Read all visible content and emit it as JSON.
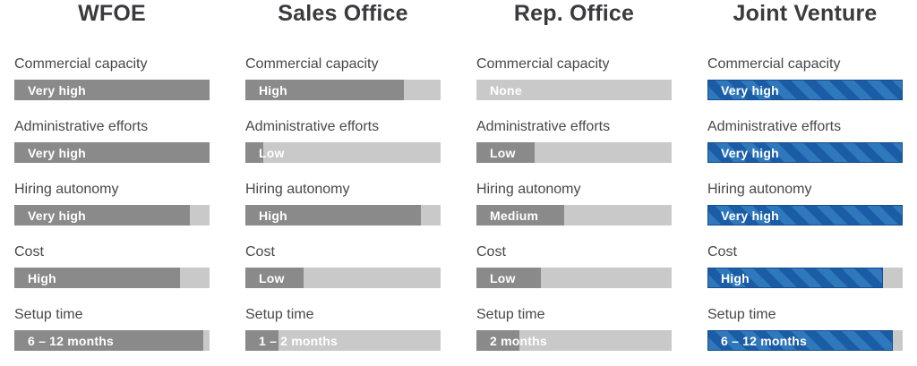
{
  "chart_data": {
    "type": "bar",
    "orientation": "horizontal",
    "scale": {
      "min": 0,
      "max": 100,
      "unit": "percent-of-track"
    },
    "colors": {
      "bar_gray": "#8a8a8a",
      "bar_track": "#c9c9c9",
      "jv_stripe_light": "#2e78bb",
      "jv_stripe_dark": "#1b5ca6",
      "jv_border": "#174e8c",
      "title_text": "#3a3a3f",
      "label_text": "#48484c",
      "bar_value_text": "#ffffff"
    },
    "columns": [
      {
        "title": "WFOE",
        "bar_style": "solid-gray",
        "metrics": [
          {
            "label": "Commercial capacity",
            "value": "Very high",
            "fill_pct": 100
          },
          {
            "label": "Administrative efforts",
            "value": "Very high",
            "fill_pct": 100
          },
          {
            "label": "Hiring autonomy",
            "value": "Very high",
            "fill_pct": 90
          },
          {
            "label": "Cost",
            "value": "High",
            "fill_pct": 85
          },
          {
            "label": "Setup time",
            "value": "6 – 12 months",
            "fill_pct": 97
          }
        ]
      },
      {
        "title": "Sales Office",
        "bar_style": "solid-gray",
        "metrics": [
          {
            "label": "Commercial capacity",
            "value": "High",
            "fill_pct": 81
          },
          {
            "label": "Administrative efforts",
            "value": "Low",
            "fill_pct": 9
          },
          {
            "label": "Hiring autonomy",
            "value": "High",
            "fill_pct": 90
          },
          {
            "label": "Cost",
            "value": "Low",
            "fill_pct": 30
          },
          {
            "label": "Setup time",
            "value": "1 – 2 months",
            "fill_pct": 17
          }
        ]
      },
      {
        "title": "Rep. Office",
        "bar_style": "solid-gray",
        "metrics": [
          {
            "label": "Commercial capacity",
            "value": "None",
            "fill_pct": 0
          },
          {
            "label": "Administrative efforts",
            "value": "Low",
            "fill_pct": 30
          },
          {
            "label": "Hiring autonomy",
            "value": "Medium",
            "fill_pct": 45
          },
          {
            "label": "Cost",
            "value": "Low",
            "fill_pct": 33
          },
          {
            "label": "Setup time",
            "value": "2 months",
            "fill_pct": 22
          }
        ]
      },
      {
        "title": "Joint Venture",
        "bar_style": "striped-blue",
        "metrics": [
          {
            "label": "Commercial capacity",
            "value": "Very high",
            "fill_pct": 100
          },
          {
            "label": "Administrative efforts",
            "value": "Very high",
            "fill_pct": 100
          },
          {
            "label": "Hiring autonomy",
            "value": "Very high",
            "fill_pct": 100
          },
          {
            "label": "Cost",
            "value": "High",
            "fill_pct": 90
          },
          {
            "label": "Setup time",
            "value": "6 – 12 months",
            "fill_pct": 95
          }
        ]
      }
    ]
  }
}
